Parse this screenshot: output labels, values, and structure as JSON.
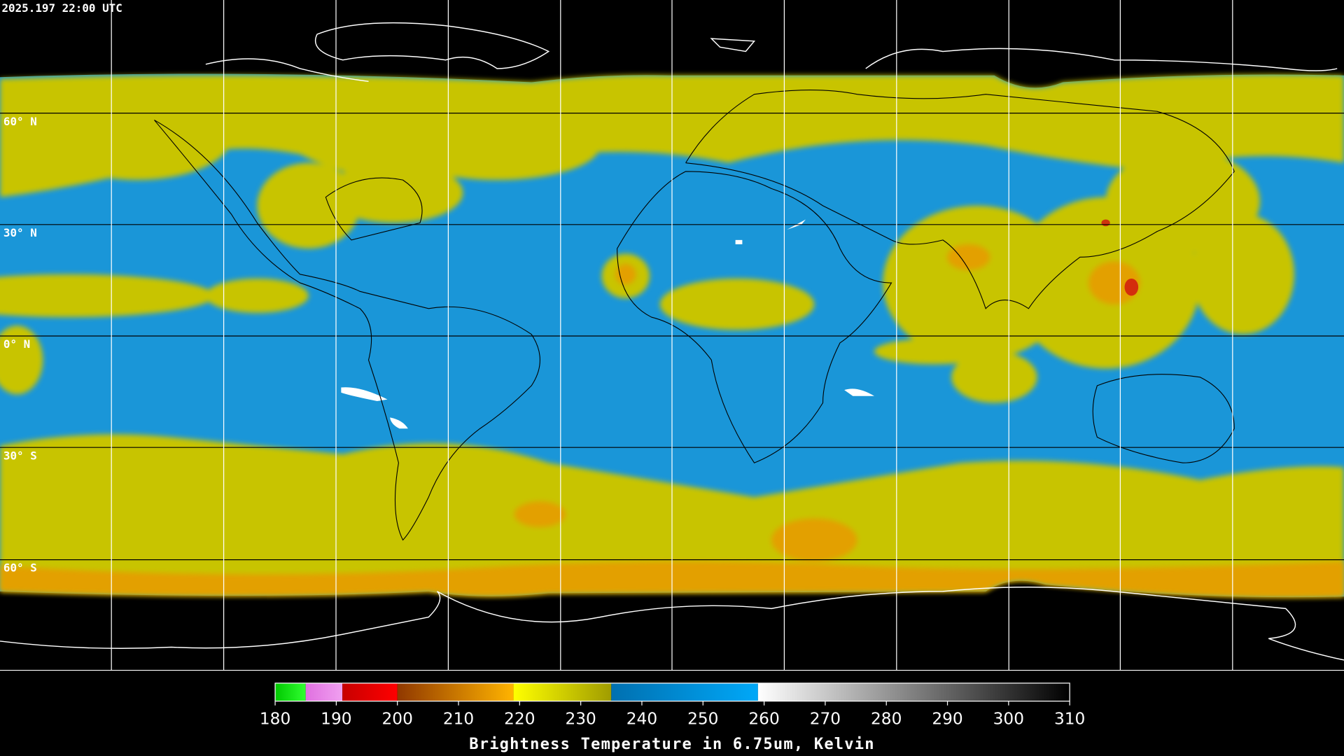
{
  "timestamp": "2025.197 22:00 UTC",
  "latitude_labels": [
    "60° N",
    "30° N",
    "0° N",
    "30° S",
    "60° S"
  ],
  "colorbar": {
    "label": "Brightness Temperature in 6.75um, Kelvin",
    "range": [
      180,
      310
    ],
    "ticks": [
      180,
      190,
      200,
      210,
      220,
      230,
      240,
      250,
      260,
      270,
      280,
      290,
      300,
      310
    ],
    "segments": [
      {
        "from": 180,
        "to": 185,
        "colors": [
          "#00c800",
          "#30ff30"
        ]
      },
      {
        "from": 185,
        "to": 191,
        "colors": [
          "#e070e0",
          "#f0a0f0"
        ]
      },
      {
        "from": 191,
        "to": 200,
        "colors": [
          "#c80000",
          "#ff0000"
        ]
      },
      {
        "from": 200,
        "to": 219,
        "colors": [
          "#903800",
          "#ffb400"
        ]
      },
      {
        "from": 219,
        "to": 235,
        "colors": [
          "#ffff00",
          "#a09c00"
        ]
      },
      {
        "from": 235,
        "to": 259,
        "colors": [
          "#0070b0",
          "#00a8f8"
        ]
      },
      {
        "from": 259,
        "to": 310,
        "colors": [
          "#ffffff",
          "#000000"
        ]
      }
    ]
  }
}
